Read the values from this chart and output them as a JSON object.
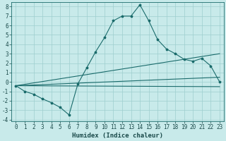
{
  "xlabel": "Humidex (Indice chaleur)",
  "bg_color": "#c8eaea",
  "grid_color": "#9ecece",
  "line_color": "#1a6b6b",
  "marker": "*",
  "xlim": [
    -0.5,
    23.5
  ],
  "ylim": [
    -4.2,
    8.5
  ],
  "xticks": [
    0,
    1,
    2,
    3,
    4,
    5,
    6,
    7,
    8,
    9,
    10,
    11,
    12,
    13,
    14,
    15,
    16,
    17,
    18,
    19,
    20,
    21,
    22,
    23
  ],
  "yticks": [
    -4,
    -3,
    -2,
    -1,
    0,
    1,
    2,
    3,
    4,
    5,
    6,
    7,
    8
  ],
  "curve1_x": [
    0,
    1,
    2,
    3,
    4,
    5,
    6,
    7,
    8,
    9,
    10,
    11,
    12,
    13,
    14,
    15,
    16,
    17,
    18,
    19,
    20,
    21,
    22,
    23
  ],
  "curve1_y": [
    -0.4,
    -1.0,
    -1.3,
    -1.8,
    -2.2,
    -2.7,
    -3.5,
    -0.2,
    1.5,
    3.2,
    4.7,
    6.5,
    7.0,
    7.0,
    8.2,
    6.5,
    4.5,
    3.5,
    3.0,
    2.4,
    2.2,
    2.5,
    1.7,
    0.0
  ],
  "line1_x": [
    0,
    23
  ],
  "line1_y": [
    -0.4,
    3.0
  ],
  "line2_x": [
    0,
    23
  ],
  "line2_y": [
    -0.4,
    0.5
  ],
  "line3_x": [
    0,
    23
  ],
  "line3_y": [
    -0.4,
    -0.5
  ],
  "tick_fontsize": 5.5,
  "xlabel_fontsize": 6.5
}
